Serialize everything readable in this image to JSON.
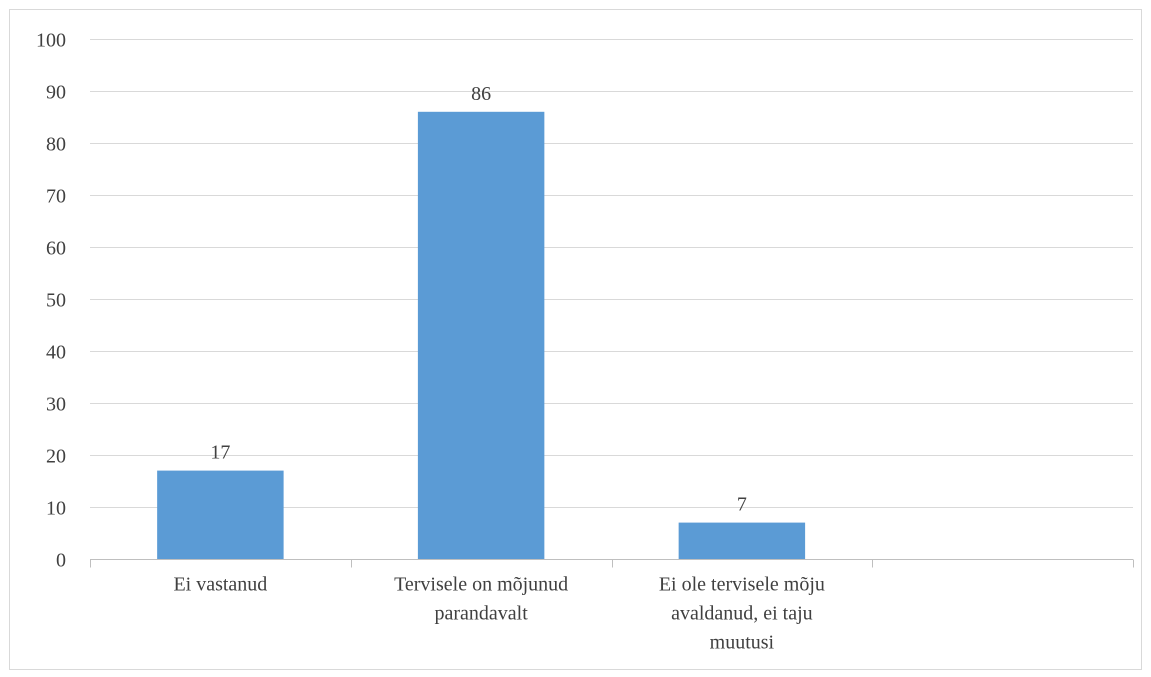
{
  "chart_data": {
    "type": "bar",
    "categories": [
      [
        "Ei vastanud"
      ],
      [
        "Tervisele on mõjunud",
        "parandavalt"
      ],
      [
        "Ei ole tervisele mõju",
        "avaldanud, ei taju",
        "muutusi"
      ]
    ],
    "values": [
      17,
      86,
      7
    ],
    "data_labels": [
      "17",
      "86",
      "7"
    ],
    "ylim": [
      0,
      100
    ],
    "y_ticks": [
      0,
      10,
      20,
      30,
      40,
      50,
      60,
      70,
      80,
      90,
      100
    ],
    "y_tick_labels": [
      "0",
      "10",
      "20",
      "30",
      "40",
      "50",
      "60",
      "70",
      "80",
      "90",
      "100"
    ],
    "empty_category_slots": 1,
    "title": "",
    "xlabel": "",
    "ylabel": "",
    "grid": true,
    "legend": "none",
    "bar_color": "#5b9bd5"
  }
}
